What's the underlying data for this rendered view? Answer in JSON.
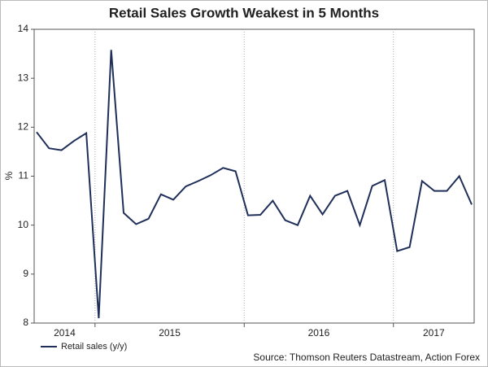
{
  "chart_data": {
    "type": "line",
    "title": "Retail Sales Growth Weakest in 5 Months",
    "y_label": "%",
    "source": "Source: Thomson Reuters Datastream, Action Forex",
    "categories": [
      null,
      null,
      null,
      null,
      null,
      null,
      null,
      null,
      null,
      null,
      null,
      null,
      null,
      null,
      null,
      null,
      null,
      null,
      null,
      null,
      null,
      null,
      null,
      null,
      null,
      null,
      null,
      null,
      null,
      null,
      null,
      null,
      null,
      null,
      null,
      null
    ],
    "series": [
      {
        "name": "Retail sales (y/y)",
        "color": "#1f2f5a",
        "values": [
          11.9,
          11.57,
          11.53,
          11.72,
          11.88,
          8.1,
          13.58,
          10.25,
          10.02,
          10.13,
          10.63,
          10.52,
          10.79,
          10.9,
          11.02,
          11.17,
          11.1,
          10.2,
          10.21,
          10.5,
          10.1,
          10.0,
          10.6,
          10.22,
          10.6,
          10.7,
          10.0,
          10.8,
          10.92,
          9.47,
          9.55,
          10.9,
          10.7,
          10.7,
          11.0,
          10.42
        ]
      }
    ],
    "ylim": [
      8,
      14
    ],
    "yticks": [
      8,
      9,
      10,
      11,
      12,
      13,
      14
    ],
    "xticks": [
      {
        "value": 5,
        "label": "2015"
      },
      {
        "value": 17,
        "label": "2016"
      },
      {
        "value": 29,
        "label": "2017"
      }
    ],
    "first_x_label": "2014",
    "grid": true
  }
}
